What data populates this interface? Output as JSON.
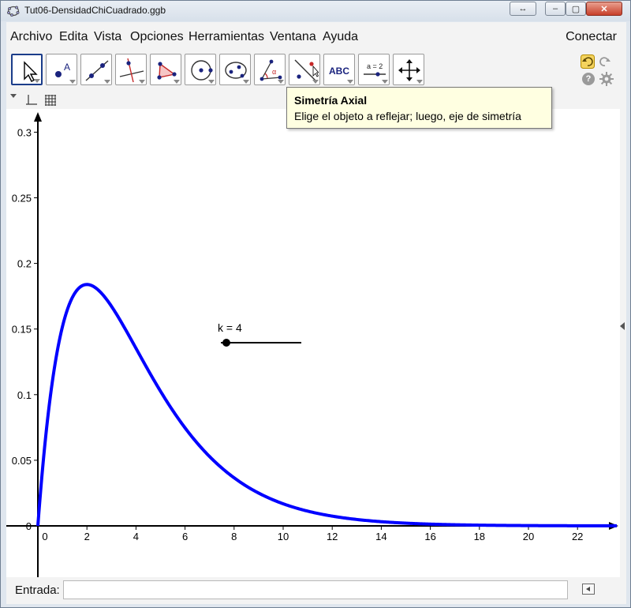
{
  "window": {
    "title": "Tut06-DensidadChiCuadrado.ggb",
    "swap_icon": "↔",
    "min_icon": "–",
    "max_icon": "▢",
    "close_icon": "✕"
  },
  "menubar": {
    "items": [
      "Archivo",
      "Edita",
      "Vista",
      "Opciones",
      "Herramientas",
      "Ventana",
      "Ayuda"
    ],
    "connect": "Conectar"
  },
  "toolbar": {
    "tools": [
      {
        "name": "move-tool",
        "icon": "arrow-cursor-icon",
        "selected": true
      },
      {
        "name": "point-tool",
        "icon": "point-icon"
      },
      {
        "name": "line-tool",
        "icon": "line-icon"
      },
      {
        "name": "perpendicular-tool",
        "icon": "perpendicular-icon"
      },
      {
        "name": "polygon-tool",
        "icon": "polygon-icon"
      },
      {
        "name": "circle-tool",
        "icon": "circle-icon"
      },
      {
        "name": "conic-tool",
        "icon": "ellipse-icon"
      },
      {
        "name": "angle-tool",
        "icon": "angle-icon"
      },
      {
        "name": "reflect-tool",
        "icon": "reflect-line-icon"
      },
      {
        "name": "text-tool",
        "icon": "text-abc-icon",
        "label": "ABC"
      },
      {
        "name": "slider-tool",
        "icon": "slider-icon",
        "label": "a = 2"
      },
      {
        "name": "move-view-tool",
        "icon": "move-arrows-icon"
      }
    ],
    "help_label": "?"
  },
  "tooltip": {
    "title": "Simetría Axial",
    "description": "Elige el objeto a reflejar; luego, eje de simetría"
  },
  "slider": {
    "label": "k = 4",
    "value": 4
  },
  "input": {
    "label": "Entrada:",
    "value": ""
  },
  "chart_data": {
    "type": "line",
    "title": "",
    "xlabel": "",
    "ylabel": "",
    "xlim": [
      -0.3,
      23.7
    ],
    "ylim": [
      -0.04,
      0.33
    ],
    "x_ticks": [
      0,
      2,
      4,
      6,
      8,
      10,
      12,
      14,
      16,
      18,
      20,
      22
    ],
    "y_ticks": [
      0,
      0.05,
      0.1,
      0.15,
      0.2,
      0.25,
      0.3
    ],
    "x_tick_labels": [
      "0",
      "2",
      "4",
      "6",
      "8",
      "10",
      "12",
      "14",
      "16",
      "18",
      "20",
      "22"
    ],
    "y_tick_labels": [
      "0",
      "0.05",
      "0.1",
      "0.15",
      "0.2",
      "0.25",
      "0.3"
    ],
    "grid": false,
    "series": [
      {
        "x": [
          0,
          0.5,
          1,
          1.5,
          2,
          2.5,
          3,
          4,
          5,
          6,
          7,
          8,
          9,
          10,
          11,
          12,
          13,
          14,
          15,
          16,
          18,
          20,
          22,
          23.6
        ],
        "y": [
          0,
          0.097,
          0.152,
          0.177,
          0.184,
          0.179,
          0.167,
          0.135,
          0.103,
          0.075,
          0.053,
          0.037,
          0.025,
          0.017,
          0.011,
          0.0074,
          0.0049,
          0.0032,
          0.0021,
          0.0013,
          0.0006,
          0.0002,
          0.0001,
          4e-05
        ],
        "color": "#0000ff"
      }
    ]
  }
}
